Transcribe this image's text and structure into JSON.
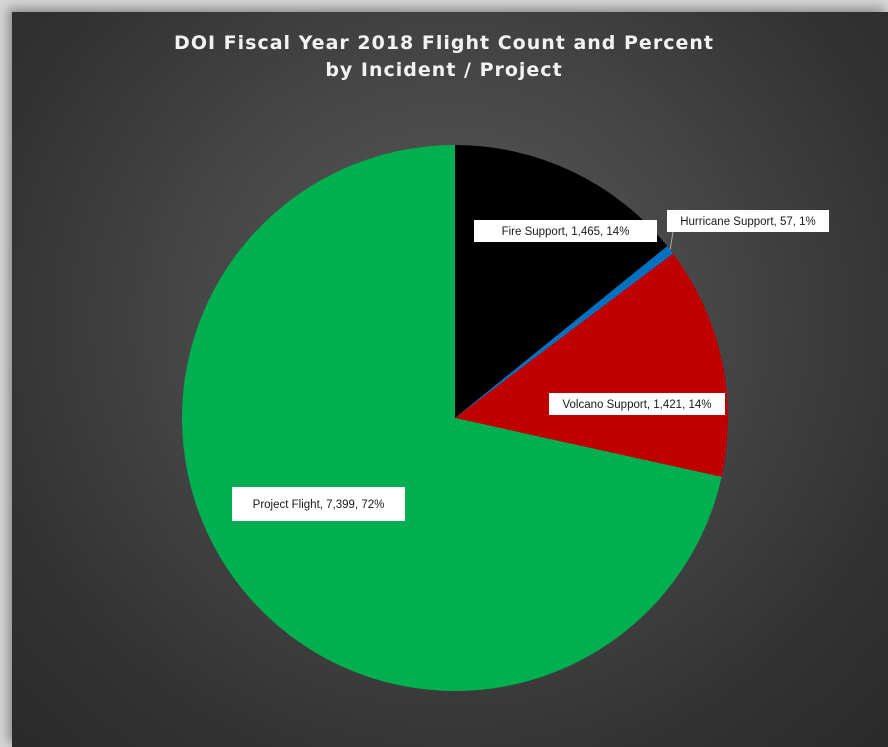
{
  "chart_data": {
    "type": "pie",
    "title": "DOI Fiscal Year 2018 Flight Count and Percent",
    "subtitle": "by Incident / Project",
    "slices": [
      {
        "name": "Fire Support",
        "value": 1465,
        "percent": 14,
        "color": "#000000",
        "label": "Fire Support, 1,465, 14%"
      },
      {
        "name": "Hurricane Support",
        "value": 57,
        "percent": 1,
        "color": "#0070C0",
        "label": "Hurricane Support, 57, 1%"
      },
      {
        "name": "Volcano Support",
        "value": 1421,
        "percent": 14,
        "color": "#C00000",
        "label": "Volcano Support, 1,421, 14%"
      },
      {
        "name": "Project Flight",
        "value": 7399,
        "percent": 72,
        "color": "#00B050",
        "label": "Project Flight, 7,399, 72%"
      }
    ],
    "legend": "none"
  }
}
